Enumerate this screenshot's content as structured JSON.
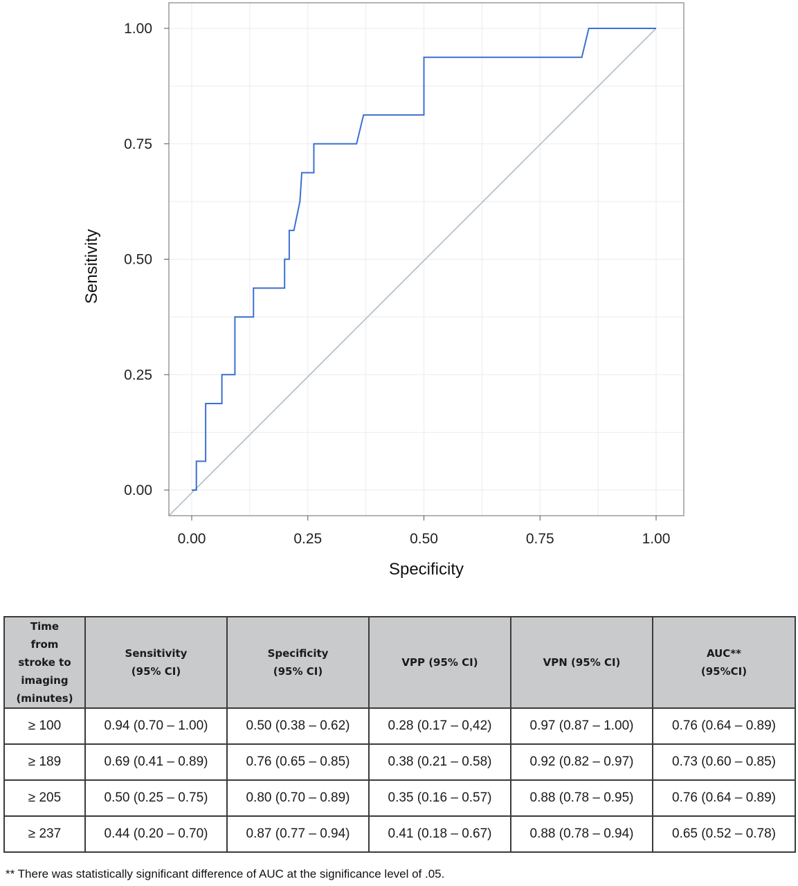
{
  "chart_data": {
    "type": "line",
    "xlabel": "Specificity",
    "ylabel": "Sensitivity",
    "xlim": [
      0,
      1
    ],
    "ylim": [
      0,
      1
    ],
    "x_ticks": [
      "0.00",
      "0.25",
      "0.50",
      "0.75",
      "1.00"
    ],
    "y_ticks": [
      "0.00",
      "0.25",
      "0.50",
      "0.75",
      "1.00"
    ],
    "grid": true,
    "reference_line": {
      "x": [
        0,
        1
      ],
      "y": [
        0,
        1
      ]
    },
    "series": [
      {
        "x": [
          0.0,
          0.01,
          0.01,
          0.03,
          0.03,
          0.065,
          0.065,
          0.093,
          0.093,
          0.133,
          0.133,
          0.2,
          0.2,
          0.21,
          0.21,
          0.22,
          0.233,
          0.233,
          0.237,
          0.237,
          0.263,
          0.263,
          0.355,
          0.37,
          0.5,
          0.5,
          0.84,
          0.855,
          1.0
        ],
        "y": [
          0.0,
          0.0,
          0.0625,
          0.0625,
          0.1875,
          0.1875,
          0.25,
          0.25,
          0.375,
          0.375,
          0.4375,
          0.4375,
          0.5,
          0.5,
          0.5625,
          0.5625,
          0.625,
          0.625,
          0.6875,
          0.6875,
          0.6875,
          0.75,
          0.75,
          0.8125,
          0.8125,
          0.9375,
          0.9375,
          1.0,
          1.0
        ]
      }
    ],
    "colors": {
      "curve": "#3b6fd1",
      "reference": "#a9b4c2",
      "grid": "#ebebeb",
      "frame": "#9a9a9a"
    }
  },
  "table": {
    "headers": [
      "Time\nfrom\nstroke to\nimaging\n(minutes)",
      "Sensitivity\n(95% CI)",
      "Specificity\n(95% CI)",
      "VPP (95% CI)",
      "VPN (95% CI)",
      "AUC**\n(95%CI)"
    ],
    "rows": [
      [
        "≥ 100",
        "0.94 (0.70 – 1.00)",
        "0.50 (0.38 – 0.62)",
        "0.28 (0.17 – 0,42)",
        "0.97 (0.87 – 1.00)",
        "0.76 (0.64 – 0.89)"
      ],
      [
        "≥ 189",
        "0.69 (0.41 – 0.89)",
        "0.76 (0.65 – 0.85)",
        "0.38 (0.21 – 0.58)",
        "0.92 (0.82 – 0.97)",
        "0.73 (0.60 – 0.85)"
      ],
      [
        "≥ 205",
        "0.50 (0.25 – 0.75)",
        "0.80 (0.70 – 0.89)",
        "0.35 (0.16 – 0.57)",
        "0.88 (0.78 – 0.95)",
        "0.76 (0.64 – 0.89)"
      ],
      [
        "≥ 237",
        "0.44 (0.20 – 0.70)",
        "0.87 (0.77 – 0.94)",
        "0.41 (0.18 – 0.67)",
        "0.88 (0.78 – 0.94)",
        "0.65 (0.52 – 0.78)"
      ]
    ],
    "header_bg": "#c9cacb"
  },
  "footnote": "** There was statistically significant difference of AUC at the significance level of .05."
}
